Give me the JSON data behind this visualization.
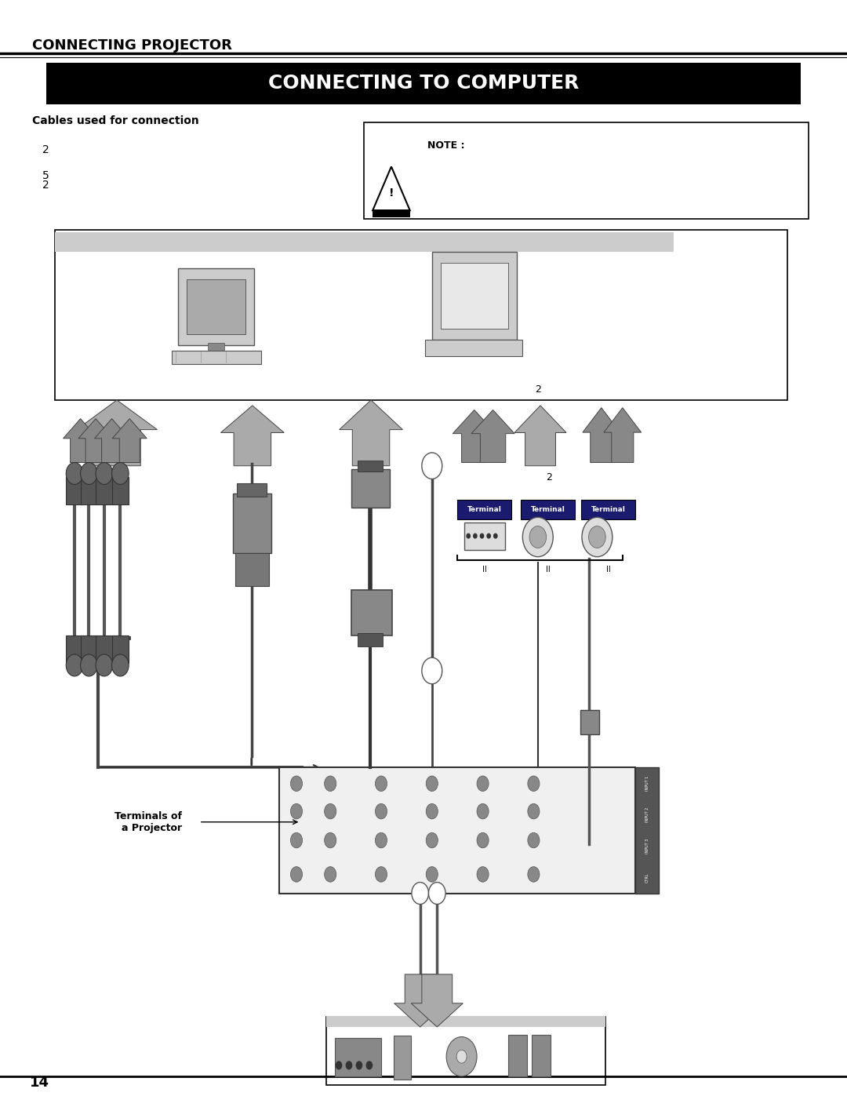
{
  "bg_color": "#ffffff",
  "page_title": "CONNECTING PROJECTOR",
  "section_title": "CONNECTING TO COMPUTER",
  "section_title_bg": "#000000",
  "section_title_color": "#ffffff",
  "cables_label": "Cables used for connection",
  "note_label": "NOTE :",
  "cable_numbers": [
    "2",
    "5",
    "2"
  ],
  "terminals_label_1": "Terminal",
  "terminals_label_2": "Terminal",
  "terminals_label_3": "Terminal",
  "terminals_of_projector": "Terminals of\na Projector",
  "page_number": "14",
  "arrow_color": "#aaaaaa",
  "line_color": "#000000"
}
